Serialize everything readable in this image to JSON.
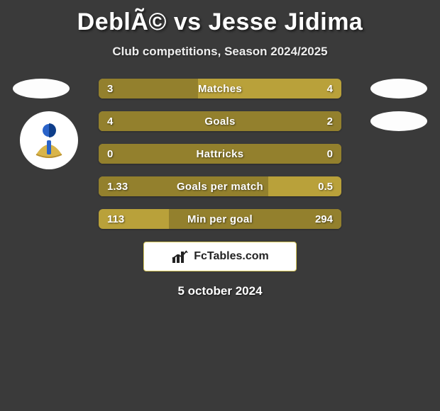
{
  "title": "DeblÃ© vs Jesse Jidima",
  "subtitle": "Club competitions, Season 2024/2025",
  "date": "5 october 2024",
  "brand": "FcTables.com",
  "colors": {
    "background": "#3a3a3a",
    "bar_base": "#b9a13a",
    "bar_dark": "#93802d",
    "text": "#ffffff",
    "brand_bg": "#ffffff",
    "brand_border": "#d8c85a",
    "brand_text": "#222222",
    "icon_accent": "#2a63c9",
    "icon_gold": "#d9b54a"
  },
  "bars": [
    {
      "label": "Matches",
      "left": "3",
      "right": "4",
      "left_pct": 41,
      "right_pct": 0
    },
    {
      "label": "Goals",
      "left": "4",
      "right": "2",
      "left_pct": 100,
      "right_pct": 0
    },
    {
      "label": "Hattricks",
      "left": "0",
      "right": "0",
      "left_pct": 100,
      "right_pct": 0
    },
    {
      "label": "Goals per match",
      "left": "1.33",
      "right": "0.5",
      "left_pct": 70,
      "right_pct": 0
    },
    {
      "label": "Min per goal",
      "left": "113",
      "right": "294",
      "left_pct": 0,
      "right_pct": 71
    }
  ],
  "side_icons": {
    "show_left_ellipse_row": 0,
    "show_right_ellipse_rows": [
      0,
      1
    ],
    "show_crest_left": true
  }
}
